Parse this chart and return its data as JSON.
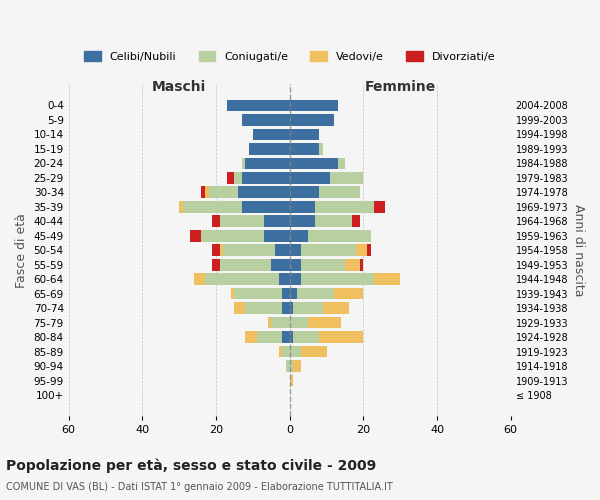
{
  "age_groups": [
    "100+",
    "95-99",
    "90-94",
    "85-89",
    "80-84",
    "75-79",
    "70-74",
    "65-69",
    "60-64",
    "55-59",
    "50-54",
    "45-49",
    "40-44",
    "35-39",
    "30-34",
    "25-29",
    "20-24",
    "15-19",
    "10-14",
    "5-9",
    "0-4"
  ],
  "birth_years": [
    "≤ 1908",
    "1909-1913",
    "1914-1918",
    "1919-1923",
    "1924-1928",
    "1929-1933",
    "1934-1938",
    "1939-1943",
    "1944-1948",
    "1949-1953",
    "1954-1958",
    "1959-1963",
    "1964-1968",
    "1969-1973",
    "1974-1978",
    "1979-1983",
    "1984-1988",
    "1989-1993",
    "1994-1998",
    "1999-2003",
    "2004-2008"
  ],
  "maschi": {
    "celibi": [
      0,
      0,
      0,
      0,
      2,
      0,
      2,
      2,
      3,
      5,
      4,
      7,
      7,
      13,
      14,
      13,
      12,
      11,
      10,
      13,
      17
    ],
    "coniugati": [
      0,
      0,
      1,
      2,
      7,
      5,
      10,
      13,
      20,
      14,
      14,
      17,
      12,
      16,
      8,
      2,
      1,
      0,
      0,
      0,
      0
    ],
    "vedovi": [
      0,
      0,
      0,
      1,
      3,
      1,
      3,
      1,
      3,
      0,
      1,
      0,
      0,
      1,
      1,
      0,
      0,
      0,
      0,
      0,
      0
    ],
    "divorziati": [
      0,
      0,
      0,
      0,
      0,
      0,
      0,
      0,
      0,
      2,
      2,
      3,
      2,
      0,
      1,
      2,
      0,
      0,
      0,
      0,
      0
    ]
  },
  "femmine": {
    "nubili": [
      0,
      0,
      0,
      0,
      1,
      0,
      1,
      2,
      3,
      3,
      3,
      5,
      7,
      7,
      8,
      11,
      13,
      8,
      8,
      12,
      13
    ],
    "coniugate": [
      0,
      0,
      1,
      3,
      7,
      5,
      8,
      10,
      20,
      12,
      15,
      17,
      10,
      16,
      11,
      9,
      2,
      1,
      0,
      0,
      0
    ],
    "vedove": [
      0,
      1,
      2,
      7,
      12,
      9,
      7,
      8,
      7,
      4,
      3,
      0,
      0,
      0,
      0,
      0,
      0,
      0,
      0,
      0,
      0
    ],
    "divorziate": [
      0,
      0,
      0,
      0,
      0,
      0,
      0,
      0,
      0,
      1,
      1,
      0,
      2,
      3,
      0,
      0,
      0,
      0,
      0,
      0,
      0
    ]
  },
  "colors": {
    "celibi_nubili": "#3d6fa0",
    "coniugati": "#b8cfa0",
    "vedovi": "#f0c060",
    "divorziati": "#cc2020"
  },
  "xlim": 60,
  "title": "Popolazione per età, sesso e stato civile - 2009",
  "subtitle": "COMUNE DI VAS (BL) - Dati ISTAT 1° gennaio 2009 - Elaborazione TUTTITALIA.IT",
  "ylabel": "Fasce di età",
  "right_ylabel": "Anni di nascita",
  "legend_labels": [
    "Celibi/Nubili",
    "Coniugati/e",
    "Vedovi/e",
    "Divorziati/e"
  ],
  "maschi_label": "Maschi",
  "femmine_label": "Femmine",
  "background_color": "#f5f5f5"
}
